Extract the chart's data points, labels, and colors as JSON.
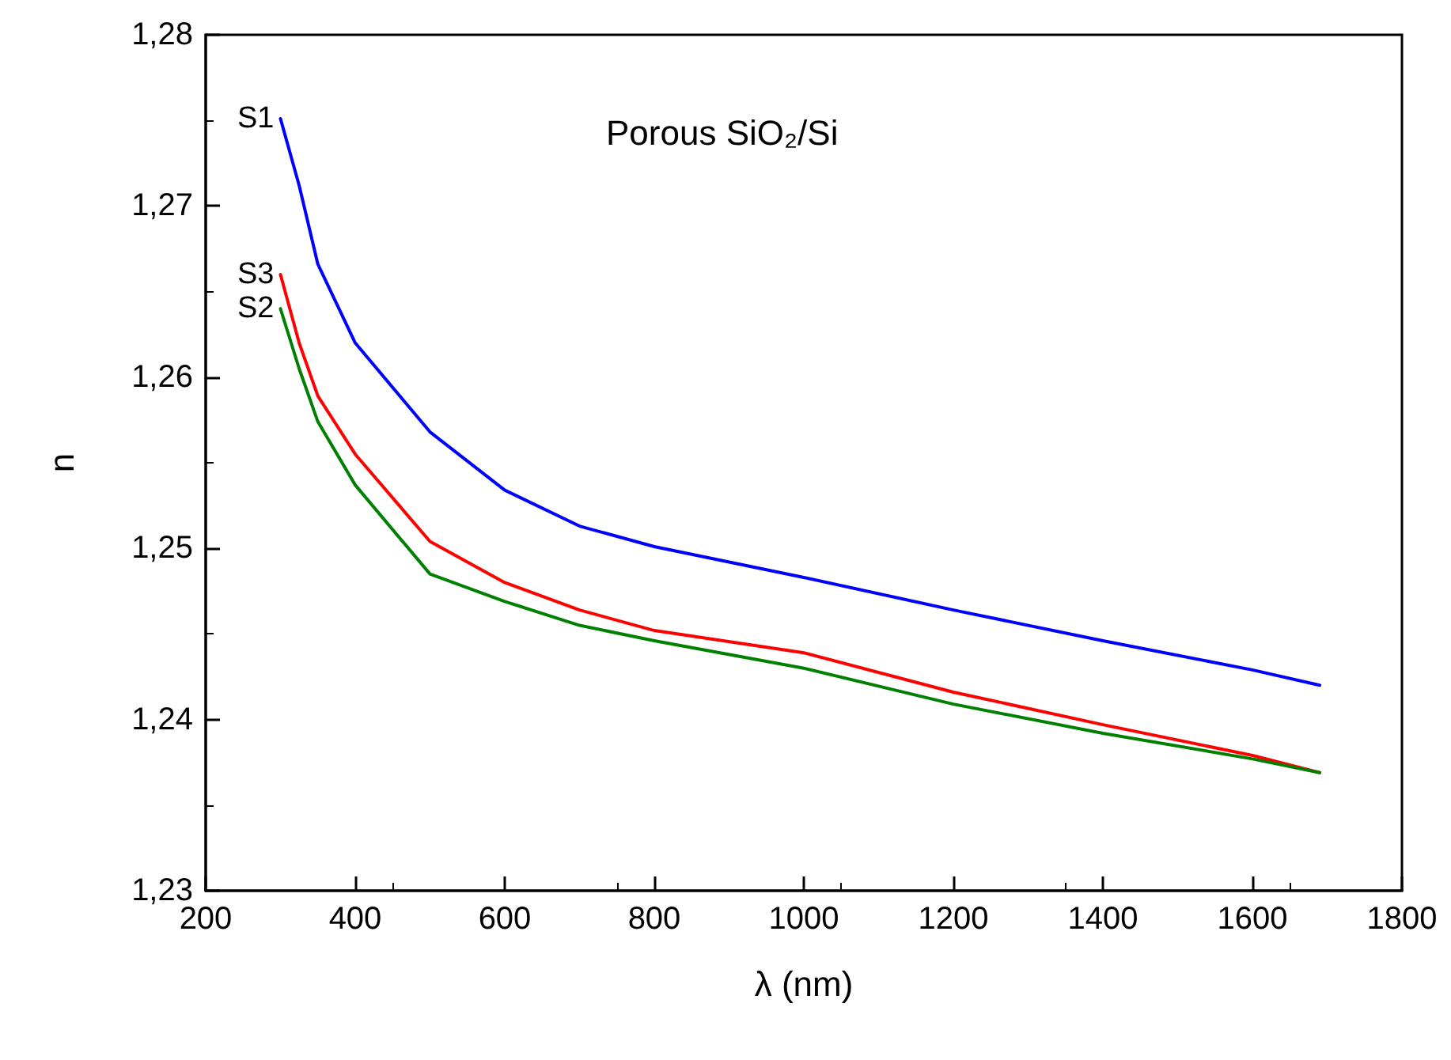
{
  "chart_data": {
    "type": "line",
    "title": "Porous SiO₂/Si",
    "xlabel": "λ (nm)",
    "ylabel": "n",
    "x": [
      300,
      325,
      350,
      400,
      500,
      600,
      700,
      800,
      1000,
      1200,
      1400,
      1600,
      1690
    ],
    "series": [
      {
        "name": "S1",
        "color": "#0000ff",
        "values": [
          1.2751,
          1.2712,
          1.2666,
          1.262,
          1.2568,
          1.2534,
          1.2513,
          1.2501,
          1.2483,
          1.2464,
          1.2446,
          1.2429,
          1.242
        ]
      },
      {
        "name": "S3",
        "color": "#ff0000",
        "values": [
          1.266,
          1.262,
          1.2589,
          1.2555,
          1.2504,
          1.248,
          1.2464,
          1.2452,
          1.2439,
          1.2416,
          1.2397,
          1.2379,
          1.2369
        ]
      },
      {
        "name": "S2",
        "color": "#008000",
        "values": [
          1.264,
          1.2605,
          1.2574,
          1.2537,
          1.2485,
          1.2469,
          1.2455,
          1.2446,
          1.243,
          1.2409,
          1.2392,
          1.2377,
          1.2369
        ]
      }
    ],
    "xlim": [
      200,
      1800
    ],
    "xticks": [
      200,
      400,
      600,
      800,
      1000,
      1200,
      1400,
      1600,
      1800
    ],
    "ylim": [
      1.23,
      1.28
    ],
    "yticks": [
      {
        "value": 1.23,
        "label": "1,23"
      },
      {
        "value": 1.24,
        "label": "1,24"
      },
      {
        "value": 1.25,
        "label": "1,25"
      },
      {
        "value": 1.26,
        "label": "1,26"
      },
      {
        "value": 1.27,
        "label": "1,27"
      },
      {
        "value": 1.28,
        "label": "1,28"
      }
    ],
    "grid": false,
    "legend": false
  }
}
